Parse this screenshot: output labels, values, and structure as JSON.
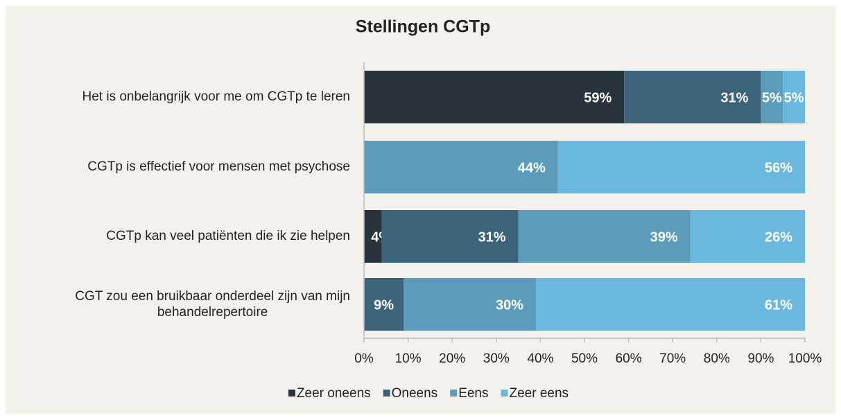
{
  "chart_data": {
    "type": "stacked-bar-horizontal",
    "title": "Stellingen CGTp",
    "categories": [
      "Het is onbelangrijk voor me om CGTp te leren",
      "CGTp is effectief voor mensen met psychose",
      "CGTp kan veel patiënten die ik zie helpen",
      "CGT zou een bruikbaar onderdeel zijn van mijn behandelrepertoire"
    ],
    "series": [
      {
        "name": "Zeer oneens",
        "color": "#28343b",
        "values": [
          59,
          0,
          4,
          0
        ],
        "value_labels": [
          "59%",
          null,
          "4%",
          null
        ]
      },
      {
        "name": "Oneens",
        "color": "#3b6379",
        "values": [
          31,
          0,
          31,
          9
        ],
        "value_labels": [
          "31%",
          null,
          "31%",
          "9%"
        ]
      },
      {
        "name": "Eens",
        "color": "#5a9cba",
        "values": [
          5,
          44,
          39,
          30
        ],
        "value_labels": [
          "5%",
          "44%",
          "39%",
          "30%"
        ]
      },
      {
        "name": "Zeer eens",
        "color": "#6bb8df",
        "values": [
          5,
          56,
          26,
          61
        ],
        "value_labels": [
          "5%",
          "56%",
          "26%",
          "61%"
        ]
      }
    ],
    "xlim": [
      0,
      100
    ],
    "xticks": [
      {
        "value": 0,
        "label": "0%"
      },
      {
        "value": 10,
        "label": "10%"
      },
      {
        "value": 20,
        "label": "20%"
      },
      {
        "value": 30,
        "label": "30%"
      },
      {
        "value": 40,
        "label": "40%"
      },
      {
        "value": 50,
        "label": "50%"
      },
      {
        "value": 60,
        "label": "60%"
      },
      {
        "value": 70,
        "label": "70%"
      },
      {
        "value": 80,
        "label": "80%"
      },
      {
        "value": 90,
        "label": "90%"
      },
      {
        "value": 100,
        "label": "100%"
      }
    ],
    "legend": "bottom"
  }
}
